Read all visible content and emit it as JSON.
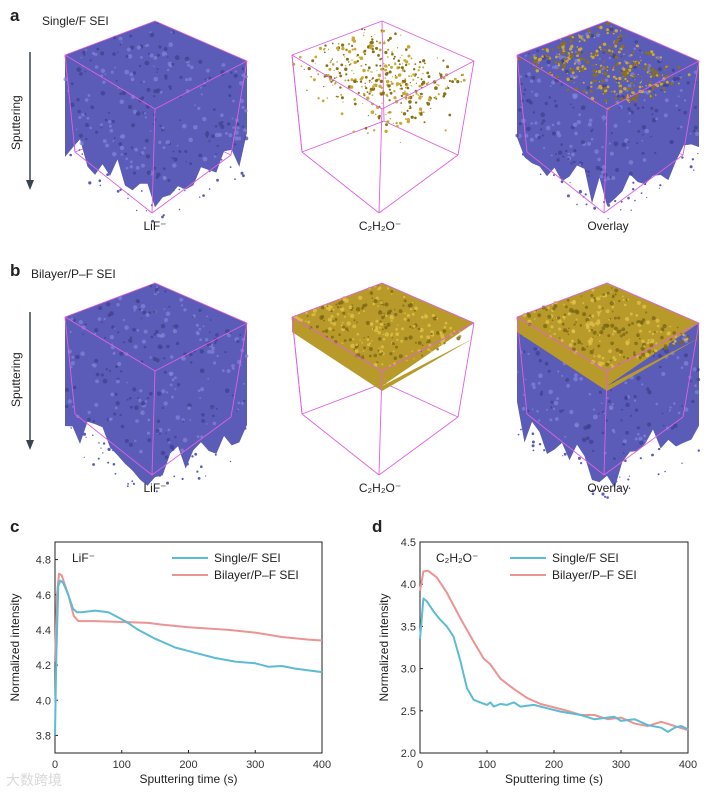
{
  "panels": [
    {
      "letter": "a",
      "title": "Single/F SEI",
      "sputter_label": "Sputtering",
      "cube_labels": [
        "LiF⁻",
        "C₂H₂O⁻",
        "Overlay"
      ]
    },
    {
      "letter": "b",
      "title": "Bilayer/P–F SEI",
      "sputter_label": "Sputtering",
      "cube_labels": [
        "LiF⁻",
        "C₂H₂O⁻",
        "Overlay"
      ]
    }
  ],
  "colors": {
    "lif": "#5a5cb8",
    "c2h2o": "#b89a2a",
    "cube_edge": "#e060e0",
    "single": "#5bbcd4",
    "bilayer": "#ec9393",
    "arrow": "#3a4450"
  },
  "watermark": "大数跨境",
  "chart_data": [
    {
      "type": "line",
      "letter": "c",
      "annotation": "LiF⁻",
      "xlabel": "Sputtering time (s)",
      "ylabel": "Normalized intensity",
      "xlim": [
        0,
        400
      ],
      "ylim": [
        3.7,
        4.9
      ],
      "xticks": [
        0,
        100,
        200,
        300,
        400
      ],
      "yticks": [
        3.8,
        4.0,
        4.2,
        4.4,
        4.6,
        4.8
      ],
      "ytick_labels": [
        "3.8",
        "4.0",
        "4.2",
        "4.4",
        "4.6",
        "4.8"
      ],
      "legend": "top-right",
      "grid": false,
      "series": [
        {
          "name": "Single/F SEI",
          "x": [
            0,
            2,
            5,
            8,
            12,
            20,
            27,
            33,
            40,
            60,
            80,
            90,
            105,
            125,
            150,
            180,
            210,
            240,
            270,
            300,
            320,
            340,
            360,
            380,
            400
          ],
          "y": [
            3.8,
            4.25,
            4.65,
            4.68,
            4.67,
            4.6,
            4.52,
            4.5,
            4.5,
            4.51,
            4.5,
            4.48,
            4.45,
            4.4,
            4.35,
            4.3,
            4.27,
            4.24,
            4.22,
            4.21,
            4.19,
            4.195,
            4.18,
            4.17,
            4.16
          ]
        },
        {
          "name": "Bilayer/P–F SEI",
          "x": [
            0,
            3,
            6,
            10,
            20,
            28,
            35,
            60,
            100,
            140,
            160,
            200,
            260,
            300,
            340,
            380,
            400
          ],
          "y": [
            4.22,
            4.6,
            4.72,
            4.71,
            4.6,
            4.48,
            4.45,
            4.45,
            4.445,
            4.44,
            4.43,
            4.415,
            4.4,
            4.385,
            4.36,
            4.345,
            4.34
          ]
        }
      ]
    },
    {
      "type": "line",
      "letter": "d",
      "annotation": "C₂H₂O⁻",
      "xlabel": "Sputtering time (s)",
      "ylabel": "Normalized intensity",
      "xlim": [
        0,
        400
      ],
      "ylim": [
        2.0,
        4.5
      ],
      "xticks": [
        0,
        100,
        200,
        300,
        400
      ],
      "yticks": [
        2.0,
        2.5,
        3.0,
        3.5,
        4.0,
        4.5
      ],
      "ytick_labels": [
        "2.0",
        "2.5",
        "3.0",
        "3.5",
        "4.0",
        "4.5"
      ],
      "legend": "top-right",
      "grid": false,
      "series": [
        {
          "name": "Single/F SEI",
          "x": [
            0,
            5,
            10,
            20,
            30,
            40,
            50,
            60,
            70,
            80,
            90,
            100,
            105,
            110,
            120,
            130,
            140,
            150,
            170,
            190,
            210,
            240,
            260,
            280,
            290,
            300,
            320,
            340,
            360,
            370,
            380,
            390,
            400
          ],
          "y": [
            3.35,
            3.83,
            3.8,
            3.68,
            3.58,
            3.5,
            3.38,
            3.1,
            2.77,
            2.63,
            2.6,
            2.57,
            2.6,
            2.55,
            2.58,
            2.57,
            2.6,
            2.55,
            2.57,
            2.53,
            2.49,
            2.45,
            2.4,
            2.42,
            2.43,
            2.38,
            2.4,
            2.33,
            2.3,
            2.25,
            2.3,
            2.32,
            2.28
          ]
        },
        {
          "name": "Bilayer/P–F SEI",
          "x": [
            0,
            5,
            12,
            25,
            40,
            60,
            80,
            95,
            105,
            120,
            140,
            160,
            180,
            200,
            220,
            240,
            260,
            280,
            300,
            320,
            340,
            360,
            380,
            400
          ],
          "y": [
            3.92,
            4.15,
            4.16,
            4.08,
            3.9,
            3.6,
            3.32,
            3.12,
            3.05,
            2.88,
            2.76,
            2.65,
            2.58,
            2.54,
            2.5,
            2.45,
            2.45,
            2.4,
            2.42,
            2.35,
            2.32,
            2.37,
            2.32,
            2.27
          ]
        }
      ]
    }
  ]
}
